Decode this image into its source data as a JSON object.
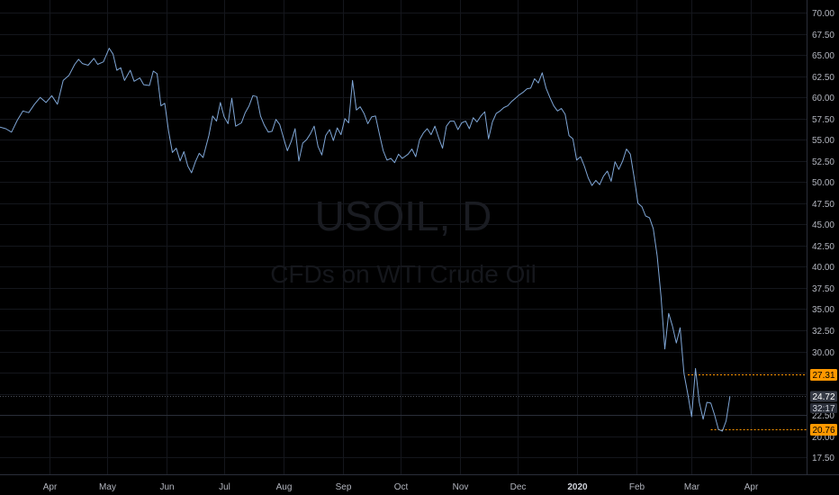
{
  "watermark": {
    "symbol": "USOIL, D",
    "description": "CFDs on WTI Crude Oil"
  },
  "colors": {
    "background": "#000000",
    "line": "#7fa6d6",
    "grid": "#14161c",
    "axis_text": "#b2b5be",
    "high_low_badge": "#ff9800",
    "current_badge": "#363a45",
    "countdown_badge": "#2a2e39"
  },
  "chart_data": {
    "type": "line",
    "x_axis": {
      "ticks": [
        "Apr",
        "May",
        "Jun",
        "Jul",
        "Aug",
        "Sep",
        "Oct",
        "Nov",
        "Dec",
        "2020",
        "Feb",
        "Mar",
        "Apr"
      ],
      "tick_days": [
        0,
        30,
        61,
        91,
        122,
        153,
        183,
        214,
        244,
        275,
        306,
        335,
        366
      ],
      "bold_tick": "2020",
      "range_days": [
        -26,
        395
      ]
    },
    "y_axis": {
      "ticks": [
        "17.50",
        "20.00",
        "22.50",
        "25.00",
        "27.50",
        "30.00",
        "32.50",
        "35.00",
        "37.50",
        "40.00",
        "42.50",
        "45.00",
        "47.50",
        "50.00",
        "52.50",
        "55.00",
        "57.50",
        "60.00",
        "62.50",
        "65.00",
        "67.50",
        "70.00"
      ],
      "range": [
        15.5,
        71.5
      ],
      "side": "right"
    },
    "grid": true,
    "series": [
      {
        "points": [
          [
            -26,
            56.5
          ],
          [
            -23,
            56.3
          ],
          [
            -20,
            55.9
          ],
          [
            -17,
            57.3
          ],
          [
            -14,
            58.4
          ],
          [
            -11,
            58.2
          ],
          [
            -8,
            59.2
          ],
          [
            -5,
            60.0
          ],
          [
            -2,
            59.4
          ],
          [
            1,
            60.2
          ],
          [
            4,
            59.2
          ],
          [
            7,
            62.0
          ],
          [
            10,
            62.6
          ],
          [
            13,
            63.9
          ],
          [
            15,
            64.5
          ],
          [
            17,
            64.0
          ],
          [
            20,
            63.8
          ],
          [
            23,
            64.6
          ],
          [
            25,
            63.9
          ],
          [
            28,
            64.2
          ],
          [
            31,
            65.8
          ],
          [
            33,
            65.1
          ],
          [
            35,
            63.2
          ],
          [
            37,
            63.5
          ],
          [
            39,
            62.0
          ],
          [
            42,
            63.2
          ],
          [
            44,
            61.9
          ],
          [
            47,
            62.3
          ],
          [
            49,
            61.5
          ],
          [
            52,
            61.4
          ],
          [
            54,
            63.1
          ],
          [
            56,
            62.8
          ],
          [
            58,
            59.0
          ],
          [
            60,
            59.3
          ],
          [
            62,
            56.0
          ],
          [
            64,
            53.5
          ],
          [
            66,
            54.0
          ],
          [
            68,
            52.5
          ],
          [
            70,
            53.6
          ],
          [
            72,
            51.9
          ],
          [
            74,
            51.1
          ],
          [
            76,
            52.4
          ],
          [
            78,
            53.4
          ],
          [
            80,
            52.9
          ],
          [
            83,
            55.5
          ],
          [
            85,
            57.8
          ],
          [
            87,
            57.2
          ],
          [
            89,
            59.4
          ],
          [
            91,
            57.7
          ],
          [
            93,
            56.9
          ],
          [
            95,
            59.9
          ],
          [
            97,
            56.6
          ],
          [
            100,
            57.0
          ],
          [
            102,
            58.2
          ],
          [
            104,
            59.0
          ],
          [
            106,
            60.2
          ],
          [
            108,
            60.1
          ],
          [
            110,
            57.8
          ],
          [
            112,
            56.7
          ],
          [
            114,
            55.9
          ],
          [
            116,
            56.0
          ],
          [
            118,
            57.4
          ],
          [
            120,
            56.8
          ],
          [
            122,
            55.2
          ],
          [
            124,
            53.7
          ],
          [
            126,
            54.8
          ],
          [
            128,
            56.3
          ],
          [
            130,
            52.5
          ],
          [
            132,
            54.6
          ],
          [
            134,
            55.0
          ],
          [
            136,
            55.7
          ],
          [
            138,
            56.6
          ],
          [
            140,
            54.2
          ],
          [
            142,
            53.2
          ],
          [
            144,
            55.5
          ],
          [
            146,
            56.2
          ],
          [
            148,
            54.9
          ],
          [
            150,
            56.4
          ],
          [
            152,
            55.6
          ],
          [
            154,
            57.5
          ],
          [
            156,
            57.0
          ],
          [
            158,
            62.0
          ],
          [
            160,
            58.5
          ],
          [
            162,
            58.9
          ],
          [
            164,
            58.1
          ],
          [
            166,
            56.9
          ],
          [
            168,
            57.7
          ],
          [
            170,
            57.8
          ],
          [
            172,
            55.7
          ],
          [
            174,
            53.7
          ],
          [
            176,
            52.6
          ],
          [
            178,
            52.8
          ],
          [
            180,
            52.3
          ],
          [
            182,
            53.3
          ],
          [
            184,
            52.8
          ],
          [
            187,
            53.3
          ],
          [
            189,
            53.9
          ],
          [
            191,
            53.0
          ],
          [
            193,
            55.0
          ],
          [
            195,
            55.8
          ],
          [
            197,
            56.3
          ],
          [
            199,
            55.6
          ],
          [
            201,
            56.6
          ],
          [
            203,
            55.2
          ],
          [
            205,
            54.0
          ],
          [
            207,
            56.6
          ],
          [
            209,
            57.2
          ],
          [
            211,
            57.2
          ],
          [
            213,
            56.2
          ],
          [
            215,
            57.0
          ],
          [
            217,
            57.2
          ],
          [
            219,
            56.3
          ],
          [
            221,
            57.6
          ],
          [
            223,
            57.1
          ],
          [
            225,
            57.8
          ],
          [
            227,
            58.3
          ],
          [
            229,
            55.1
          ],
          [
            231,
            57.1
          ],
          [
            233,
            58.1
          ],
          [
            235,
            58.4
          ],
          [
            237,
            58.8
          ],
          [
            239,
            59.0
          ],
          [
            241,
            59.5
          ],
          [
            243,
            59.9
          ],
          [
            245,
            60.3
          ],
          [
            247,
            60.6
          ],
          [
            249,
            61.0
          ],
          [
            251,
            61.1
          ],
          [
            253,
            62.2
          ],
          [
            255,
            61.7
          ],
          [
            257,
            62.9
          ],
          [
            259,
            61.1
          ],
          [
            261,
            60.0
          ],
          [
            263,
            59.0
          ],
          [
            265,
            58.4
          ],
          [
            267,
            58.7
          ],
          [
            269,
            58.0
          ],
          [
            271,
            55.5
          ],
          [
            273,
            55.1
          ],
          [
            275,
            52.6
          ],
          [
            277,
            53.0
          ],
          [
            279,
            51.9
          ],
          [
            281,
            50.5
          ],
          [
            283,
            49.6
          ],
          [
            285,
            50.2
          ],
          [
            287,
            49.7
          ],
          [
            289,
            50.7
          ],
          [
            291,
            51.3
          ],
          [
            293,
            50.1
          ],
          [
            295,
            52.4
          ],
          [
            297,
            51.5
          ],
          [
            299,
            52.5
          ],
          [
            301,
            53.9
          ],
          [
            303,
            53.3
          ],
          [
            305,
            50.5
          ],
          [
            307,
            47.5
          ],
          [
            309,
            47.1
          ],
          [
            311,
            46.0
          ],
          [
            313,
            45.8
          ],
          [
            315,
            44.5
          ],
          [
            317,
            41.3
          ],
          [
            319,
            36.5
          ],
          [
            321,
            30.3
          ],
          [
            323,
            34.5
          ],
          [
            325,
            33.0
          ],
          [
            327,
            31.0
          ],
          [
            329,
            32.8
          ],
          [
            331,
            27.4
          ],
          [
            333,
            25.0
          ],
          [
            335,
            22.3
          ],
          [
            337,
            28.0
          ],
          [
            339,
            24.0
          ],
          [
            341,
            22.0
          ],
          [
            343,
            24.0
          ],
          [
            345,
            23.9
          ],
          [
            347,
            22.5
          ],
          [
            349,
            20.8
          ],
          [
            351,
            20.6
          ],
          [
            353,
            21.8
          ],
          [
            355,
            24.72
          ]
        ]
      }
    ],
    "markers": {
      "high": "27.31",
      "current": "24.72",
      "countdown": "32:17",
      "low": "20.76"
    }
  }
}
